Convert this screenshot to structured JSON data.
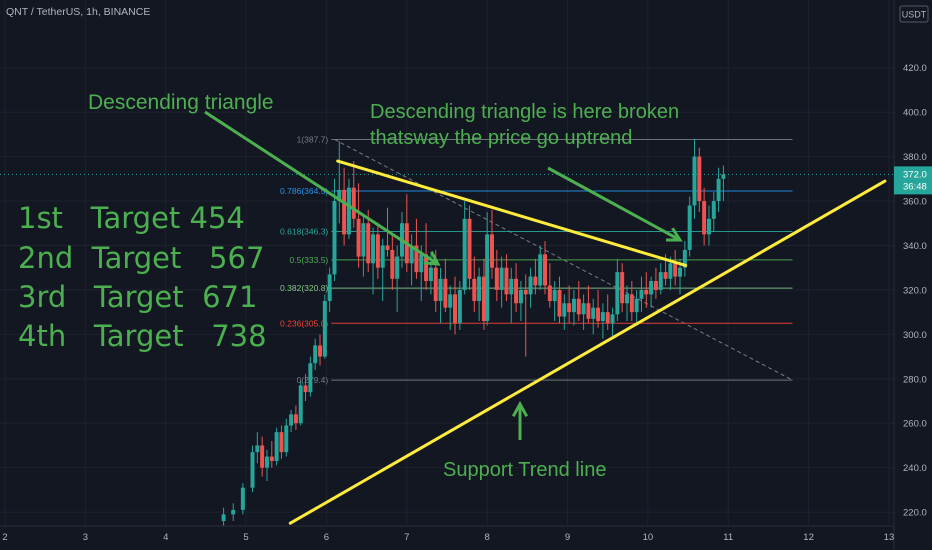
{
  "symbol_header": "QNT / TetherUS, 1h, BINANCE",
  "currency": "USDT",
  "chart_data": {
    "type": "candlestick",
    "x_ticks": [
      "2",
      "3",
      "4",
      "5",
      "6",
      "7",
      "8",
      "9",
      "10",
      "11",
      "12",
      "13"
    ],
    "y_ticks": [
      "220.0",
      "240.0",
      "260.0",
      "280.0",
      "300.0",
      "320.0",
      "340.0",
      "360.0",
      "380.0",
      "400.0",
      "420.0"
    ],
    "ylim": [
      214,
      445
    ],
    "xlim": [
      1.9,
      13.1
    ],
    "last_price": "372.0",
    "countdown": "36:48",
    "fib_levels": [
      {
        "ratio": "1",
        "price": 387.7,
        "label": "1(387.7)",
        "color": "#787b86"
      },
      {
        "ratio": "0.786",
        "price": 364.5,
        "label": "0.786(364.5)",
        "color": "#2196f3"
      },
      {
        "ratio": "0.618",
        "price": 346.3,
        "label": "0.618(346.3)",
        "color": "#26a69a"
      },
      {
        "ratio": "0.5",
        "price": 333.5,
        "label": "0.5(333.5)",
        "color": "#4caf50"
      },
      {
        "ratio": "0.382",
        "price": 320.8,
        "label": "0.382(320.8)",
        "color": "#81c784"
      },
      {
        "ratio": "0.236",
        "price": 305.0,
        "label": "0.236(305.0)",
        "color": "#f44336"
      },
      {
        "ratio": "0",
        "price": 279.4,
        "label": "0(279.4)",
        "color": "#787b86"
      }
    ],
    "trend_lines": [
      {
        "name": "descending-resistance",
        "x1": 6.14,
        "y1": 378,
        "x2": 10.47,
        "y2": 331
      },
      {
        "name": "support-trend",
        "x1": 5.55,
        "y1": 215,
        "x2": 12.95,
        "y2": 369
      }
    ],
    "candles": [
      {
        "x": 4.72,
        "o": 216,
        "h": 222,
        "l": 214,
        "c": 219
      },
      {
        "x": 4.84,
        "o": 219,
        "h": 224,
        "l": 216,
        "c": 221
      },
      {
        "x": 4.96,
        "o": 221,
        "h": 233,
        "l": 219,
        "c": 231
      },
      {
        "x": 5.08,
        "o": 231,
        "h": 250,
        "l": 229,
        "c": 247
      },
      {
        "x": 5.14,
        "o": 247,
        "h": 256,
        "l": 242,
        "c": 250
      },
      {
        "x": 5.2,
        "o": 250,
        "h": 254,
        "l": 236,
        "c": 240
      },
      {
        "x": 5.26,
        "o": 240,
        "h": 248,
        "l": 234,
        "c": 245
      },
      {
        "x": 5.32,
        "o": 245,
        "h": 252,
        "l": 240,
        "c": 243
      },
      {
        "x": 5.38,
        "o": 243,
        "h": 258,
        "l": 241,
        "c": 256
      },
      {
        "x": 5.44,
        "o": 256,
        "h": 259,
        "l": 244,
        "c": 247
      },
      {
        "x": 5.5,
        "o": 247,
        "h": 262,
        "l": 245,
        "c": 259
      },
      {
        "x": 5.56,
        "o": 259,
        "h": 266,
        "l": 256,
        "c": 264
      },
      {
        "x": 5.62,
        "o": 264,
        "h": 268,
        "l": 257,
        "c": 260
      },
      {
        "x": 5.68,
        "o": 260,
        "h": 279,
        "l": 259,
        "c": 277
      },
      {
        "x": 5.74,
        "o": 277,
        "h": 282,
        "l": 270,
        "c": 274
      },
      {
        "x": 5.8,
        "o": 274,
        "h": 290,
        "l": 272,
        "c": 287
      },
      {
        "x": 5.86,
        "o": 287,
        "h": 298,
        "l": 284,
        "c": 295
      },
      {
        "x": 5.92,
        "o": 295,
        "h": 300,
        "l": 286,
        "c": 290
      },
      {
        "x": 5.98,
        "o": 290,
        "h": 318,
        "l": 289,
        "c": 315
      },
      {
        "x": 6.04,
        "o": 315,
        "h": 330,
        "l": 310,
        "c": 327
      },
      {
        "x": 6.1,
        "o": 327,
        "h": 370,
        "l": 324,
        "c": 360
      },
      {
        "x": 6.16,
        "o": 360,
        "h": 387,
        "l": 350,
        "c": 365
      },
      {
        "x": 6.22,
        "o": 365,
        "h": 375,
        "l": 340,
        "c": 345
      },
      {
        "x": 6.28,
        "o": 345,
        "h": 370,
        "l": 343,
        "c": 366
      },
      {
        "x": 6.34,
        "o": 366,
        "h": 378,
        "l": 348,
        "c": 352
      },
      {
        "x": 6.4,
        "o": 352,
        "h": 368,
        "l": 330,
        "c": 335
      },
      {
        "x": 6.46,
        "o": 335,
        "h": 353,
        "l": 326,
        "c": 350
      },
      {
        "x": 6.52,
        "o": 350,
        "h": 356,
        "l": 328,
        "c": 332
      },
      {
        "x": 6.58,
        "o": 332,
        "h": 348,
        "l": 318,
        "c": 345
      },
      {
        "x": 6.64,
        "o": 345,
        "h": 350,
        "l": 325,
        "c": 330
      },
      {
        "x": 6.7,
        "o": 330,
        "h": 343,
        "l": 315,
        "c": 340
      },
      {
        "x": 6.76,
        "o": 340,
        "h": 357,
        "l": 335,
        "c": 338
      },
      {
        "x": 6.82,
        "o": 338,
        "h": 345,
        "l": 320,
        "c": 325
      },
      {
        "x": 6.88,
        "o": 325,
        "h": 340,
        "l": 310,
        "c": 335
      },
      {
        "x": 6.94,
        "o": 335,
        "h": 355,
        "l": 330,
        "c": 350
      },
      {
        "x": 7.0,
        "o": 350,
        "h": 363,
        "l": 328,
        "c": 332
      },
      {
        "x": 7.06,
        "o": 332,
        "h": 345,
        "l": 322,
        "c": 340
      },
      {
        "x": 7.12,
        "o": 340,
        "h": 352,
        "l": 325,
        "c": 328
      },
      {
        "x": 7.18,
        "o": 328,
        "h": 340,
        "l": 315,
        "c": 336
      },
      {
        "x": 7.24,
        "o": 336,
        "h": 350,
        "l": 320,
        "c": 324
      },
      {
        "x": 7.3,
        "o": 324,
        "h": 336,
        "l": 318,
        "c": 330
      },
      {
        "x": 7.36,
        "o": 330,
        "h": 338,
        "l": 310,
        "c": 315
      },
      {
        "x": 7.42,
        "o": 315,
        "h": 330,
        "l": 305,
        "c": 325
      },
      {
        "x": 7.48,
        "o": 325,
        "h": 334,
        "l": 310,
        "c": 312
      },
      {
        "x": 7.54,
        "o": 312,
        "h": 322,
        "l": 302,
        "c": 318
      },
      {
        "x": 7.6,
        "o": 318,
        "h": 326,
        "l": 300,
        "c": 305
      },
      {
        "x": 7.66,
        "o": 305,
        "h": 324,
        "l": 302,
        "c": 320
      },
      {
        "x": 7.72,
        "o": 320,
        "h": 360,
        "l": 318,
        "c": 352
      },
      {
        "x": 7.78,
        "o": 352,
        "h": 358,
        "l": 320,
        "c": 325
      },
      {
        "x": 7.84,
        "o": 325,
        "h": 335,
        "l": 310,
        "c": 315
      },
      {
        "x": 7.9,
        "o": 315,
        "h": 330,
        "l": 306,
        "c": 326
      },
      {
        "x": 7.96,
        "o": 326,
        "h": 334,
        "l": 302,
        "c": 306
      },
      {
        "x": 8.0,
        "o": 306,
        "h": 355,
        "l": 304,
        "c": 345
      },
      {
        "x": 8.06,
        "o": 345,
        "h": 356,
        "l": 325,
        "c": 330
      },
      {
        "x": 8.12,
        "o": 330,
        "h": 338,
        "l": 315,
        "c": 320
      },
      {
        "x": 8.18,
        "o": 320,
        "h": 335,
        "l": 312,
        "c": 330
      },
      {
        "x": 8.24,
        "o": 330,
        "h": 336,
        "l": 315,
        "c": 318
      },
      {
        "x": 8.3,
        "o": 318,
        "h": 330,
        "l": 305,
        "c": 325
      },
      {
        "x": 8.36,
        "o": 325,
        "h": 332,
        "l": 310,
        "c": 314
      },
      {
        "x": 8.42,
        "o": 314,
        "h": 324,
        "l": 306,
        "c": 320
      },
      {
        "x": 8.48,
        "o": 320,
        "h": 327,
        "l": 290,
        "c": 318
      },
      {
        "x": 8.54,
        "o": 318,
        "h": 330,
        "l": 312,
        "c": 326
      },
      {
        "x": 8.6,
        "o": 326,
        "h": 334,
        "l": 318,
        "c": 322
      },
      {
        "x": 8.66,
        "o": 322,
        "h": 340,
        "l": 320,
        "c": 336
      },
      {
        "x": 8.72,
        "o": 336,
        "h": 342,
        "l": 318,
        "c": 322
      },
      {
        "x": 8.78,
        "o": 322,
        "h": 332,
        "l": 312,
        "c": 315
      },
      {
        "x": 8.84,
        "o": 315,
        "h": 324,
        "l": 306,
        "c": 320
      },
      {
        "x": 8.9,
        "o": 320,
        "h": 326,
        "l": 305,
        "c": 308
      },
      {
        "x": 8.96,
        "o": 308,
        "h": 318,
        "l": 302,
        "c": 314
      },
      {
        "x": 9.02,
        "o": 314,
        "h": 322,
        "l": 305,
        "c": 310
      },
      {
        "x": 9.08,
        "o": 310,
        "h": 320,
        "l": 304,
        "c": 316
      },
      {
        "x": 9.14,
        "o": 316,
        "h": 324,
        "l": 306,
        "c": 309
      },
      {
        "x": 9.2,
        "o": 309,
        "h": 318,
        "l": 302,
        "c": 314
      },
      {
        "x": 9.26,
        "o": 314,
        "h": 322,
        "l": 305,
        "c": 307
      },
      {
        "x": 9.32,
        "o": 307,
        "h": 316,
        "l": 300,
        "c": 312
      },
      {
        "x": 9.38,
        "o": 312,
        "h": 320,
        "l": 303,
        "c": 306
      },
      {
        "x": 9.44,
        "o": 306,
        "h": 314,
        "l": 298,
        "c": 310
      },
      {
        "x": 9.5,
        "o": 310,
        "h": 318,
        "l": 302,
        "c": 305
      },
      {
        "x": 9.56,
        "o": 305,
        "h": 312,
        "l": 298,
        "c": 309
      },
      {
        "x": 9.62,
        "o": 309,
        "h": 334,
        "l": 306,
        "c": 328
      },
      {
        "x": 9.68,
        "o": 328,
        "h": 332,
        "l": 310,
        "c": 314
      },
      {
        "x": 9.74,
        "o": 314,
        "h": 322,
        "l": 306,
        "c": 318
      },
      {
        "x": 9.8,
        "o": 318,
        "h": 324,
        "l": 306,
        "c": 310
      },
      {
        "x": 9.86,
        "o": 310,
        "h": 320,
        "l": 304,
        "c": 316
      },
      {
        "x": 9.92,
        "o": 316,
        "h": 326,
        "l": 310,
        "c": 320
      },
      {
        "x": 9.98,
        "o": 320,
        "h": 328,
        "l": 312,
        "c": 318
      },
      {
        "x": 10.04,
        "o": 318,
        "h": 326,
        "l": 312,
        "c": 324
      },
      {
        "x": 10.1,
        "o": 324,
        "h": 330,
        "l": 316,
        "c": 320
      },
      {
        "x": 10.16,
        "o": 320,
        "h": 332,
        "l": 318,
        "c": 328
      },
      {
        "x": 10.22,
        "o": 328,
        "h": 336,
        "l": 322,
        "c": 325
      },
      {
        "x": 10.28,
        "o": 325,
        "h": 335,
        "l": 320,
        "c": 332
      },
      {
        "x": 10.34,
        "o": 332,
        "h": 338,
        "l": 322,
        "c": 326
      },
      {
        "x": 10.4,
        "o": 326,
        "h": 334,
        "l": 318,
        "c": 330
      },
      {
        "x": 10.46,
        "o": 330,
        "h": 342,
        "l": 326,
        "c": 338
      },
      {
        "x": 10.52,
        "o": 338,
        "h": 362,
        "l": 335,
        "c": 358
      },
      {
        "x": 10.58,
        "o": 358,
        "h": 388,
        "l": 352,
        "c": 380
      },
      {
        "x": 10.64,
        "o": 380,
        "h": 384,
        "l": 355,
        "c": 360
      },
      {
        "x": 10.7,
        "o": 360,
        "h": 366,
        "l": 340,
        "c": 345
      },
      {
        "x": 10.76,
        "o": 345,
        "h": 358,
        "l": 340,
        "c": 352
      },
      {
        "x": 10.82,
        "o": 352,
        "h": 364,
        "l": 346,
        "c": 360
      },
      {
        "x": 10.88,
        "o": 360,
        "h": 375,
        "l": 355,
        "c": 370
      },
      {
        "x": 10.94,
        "o": 370,
        "h": 376,
        "l": 360,
        "c": 372
      }
    ]
  },
  "annotations": {
    "descending_triangle": "Descending triangle",
    "broken_line1": "Descending triangle is here broken",
    "broken_line2": "thatsway the price go uptrend",
    "support": "Support Trend line"
  },
  "targets": [
    "1st   Target 454",
    "2nd  Target   567",
    "3rd   Target  671",
    "4th   Target   738"
  ]
}
